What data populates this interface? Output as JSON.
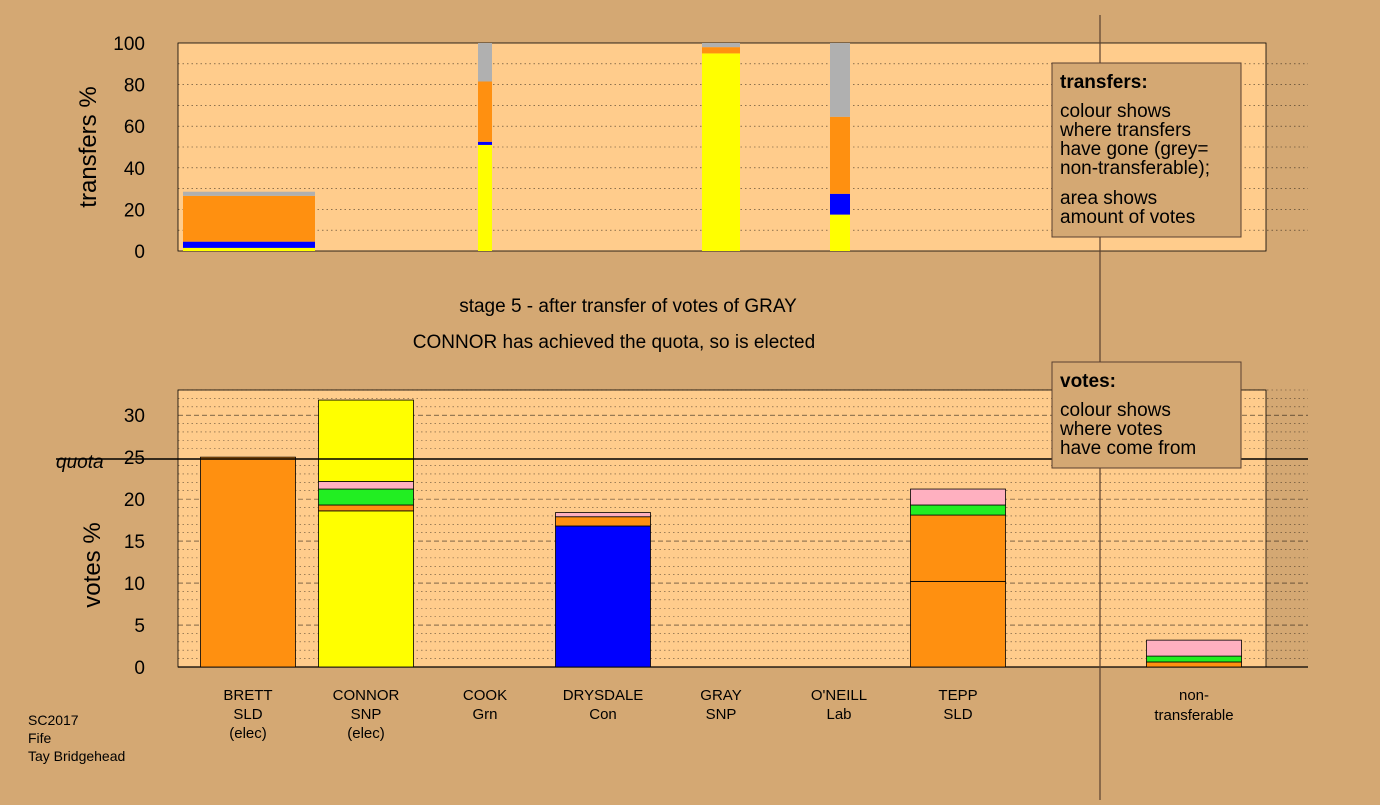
{
  "colors": {
    "background": "#d4a873",
    "plot_bg": "#ffcc8c",
    "SNP": "#ffff00",
    "Con": "#0000ff",
    "SLD": "#ff9010",
    "Grn": "#22ee22",
    "Lab": "#ffb0c0",
    "nontransferable": "#b0b0b0"
  },
  "stage": {
    "line1": "stage 5 - after transfer of votes of GRAY",
    "line2": "CONNOR has achieved the quota, so is elected"
  },
  "legend_transfers": {
    "title": "transfers:",
    "lines1": [
      "colour shows",
      "where transfers",
      "have gone (grey=",
      "non-transferable);"
    ],
    "lines2": [
      "area shows",
      "amount of votes"
    ]
  },
  "legend_votes": {
    "title": "votes:",
    "lines": [
      "colour shows",
      "where votes",
      "have come from"
    ]
  },
  "footer": [
    "SC2017",
    "Fife",
    "Tay Bridgehead"
  ],
  "quota_label": "quota",
  "chart_data": [
    {
      "type": "bar",
      "stacked": true,
      "ylabel": "transfers %",
      "ylim": [
        0,
        100
      ],
      "yticks": [
        0,
        20,
        40,
        60,
        80,
        100
      ],
      "grid": "dotted horizontal",
      "legend_position": "top-right",
      "columns": [
        {
          "name": "BRETT",
          "width": "wide",
          "segments": [
            {
              "party": "SNP",
              "value": 1.5
            },
            {
              "party": "Con",
              "value": 3
            },
            {
              "party": "SLD",
              "value": 22
            },
            {
              "party": "nontransferable",
              "value": 2
            }
          ]
        },
        {
          "name": "COOK",
          "width": "narrow",
          "segments": [
            {
              "party": "SNP",
              "value": 51
            },
            {
              "party": "Con",
              "value": 1.5
            },
            {
              "party": "SLD",
              "value": 29
            },
            {
              "party": "nontransferable",
              "value": 18.5
            }
          ]
        },
        {
          "name": "GRAY",
          "width": "medium",
          "segments": [
            {
              "party": "SNP",
              "value": 95
            },
            {
              "party": "SLD",
              "value": 3
            },
            {
              "party": "nontransferable",
              "value": 2
            }
          ]
        },
        {
          "name": "O'NEILL",
          "width": "narrow",
          "segments": [
            {
              "party": "SNP",
              "value": 17.5
            },
            {
              "party": "Con",
              "value": 10
            },
            {
              "party": "SLD",
              "value": 37
            },
            {
              "party": "nontransferable",
              "value": 35.5
            }
          ]
        }
      ]
    },
    {
      "type": "bar",
      "stacked": true,
      "ylabel": "votes %",
      "ylim": [
        0,
        33
      ],
      "yticks": [
        0,
        5,
        10,
        15,
        20,
        25,
        30
      ],
      "quota": 25,
      "grid": "dotted horizontal",
      "legend_position": "top-right",
      "candidates": [
        {
          "name": "BRETT",
          "party": "SLD",
          "status": "(elec)",
          "segments": [
            {
              "party": "SLD",
              "value": 25
            }
          ]
        },
        {
          "name": "CONNOR",
          "party": "SNP",
          "status": "(elec)",
          "segments": [
            {
              "party": "SNP",
              "value": 18.6
            },
            {
              "party": "SLD",
              "value": 0.7
            },
            {
              "party": "Grn",
              "value": 1.9
            },
            {
              "party": "Lab",
              "value": 0.9
            },
            {
              "party": "SNP",
              "value": 9.7
            }
          ]
        },
        {
          "name": "COOK",
          "party": "Grn",
          "status": "",
          "segments": []
        },
        {
          "name": "DRYSDALE",
          "party": "Con",
          "status": "",
          "segments": [
            {
              "party": "Con",
              "value": 16.8
            },
            {
              "party": "SLD",
              "value": 1.1
            },
            {
              "party": "Lab",
              "value": 0.5
            }
          ]
        },
        {
          "name": "GRAY",
          "party": "SNP",
          "status": "",
          "segments": []
        },
        {
          "name": "O'NEILL",
          "party": "Lab",
          "status": "",
          "segments": []
        },
        {
          "name": "TEPP",
          "party": "SLD",
          "status": "",
          "segments": [
            {
              "party": "SLD",
              "value": 10.2
            },
            {
              "party": "SLD",
              "value": 7.9
            },
            {
              "party": "Grn",
              "value": 1.2
            },
            {
              "party": "Lab",
              "value": 1.9
            }
          ]
        }
      ],
      "nontransferable": {
        "label": [
          "non-",
          "transferable"
        ],
        "segments": [
          {
            "party": "SLD",
            "value": 0.6
          },
          {
            "party": "Grn",
            "value": 0.7
          },
          {
            "party": "Lab",
            "value": 1.9
          }
        ]
      }
    }
  ]
}
